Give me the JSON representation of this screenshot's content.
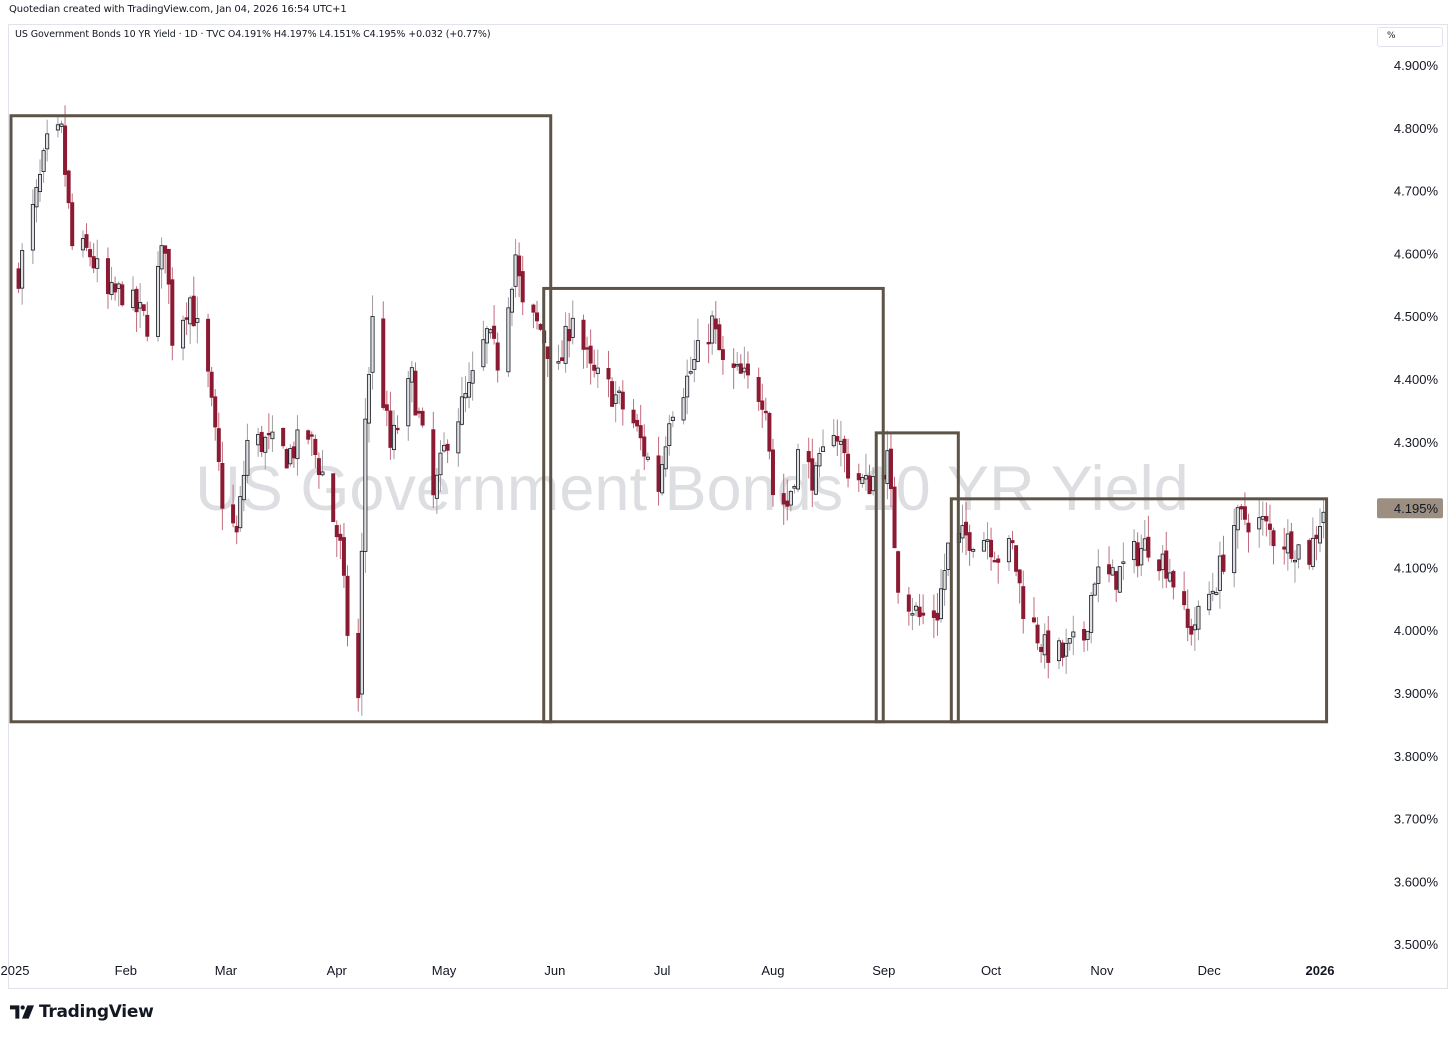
{
  "header": {
    "credit": "Quotedian created with TradingView.com, Jan 04, 2026 16:54 UTC+1"
  },
  "legend": {
    "text": "US Government Bonds 10 YR Yield · 1D · TVC  O4.191%  H4.197%  L4.151%  C4.195%  +0.032 (+0.77%)"
  },
  "unit_button": "%",
  "watermark": "US Government Bonds 10 YR Yield",
  "footer": {
    "brand": "TradingView",
    "logo_icon": "tradingview-logo-icon"
  },
  "colors": {
    "up_body": "#e0e0e0",
    "up_border": "#131722",
    "down": "#8b1a32",
    "wick": "#9e9e9e",
    "box": "#5d5346",
    "axis_text": "#131722",
    "last_price_bg": "#9c8f82",
    "watermark": "rgba(120,123,134,0.25)"
  },
  "chart_data": {
    "type": "candlestick",
    "title": "US Government Bonds 10 YR Yield",
    "unit": "%",
    "ylim": [
      3.45,
      4.95
    ],
    "y_ticks": [
      "4.900%",
      "4.800%",
      "4.700%",
      "4.600%",
      "4.500%",
      "4.400%",
      "4.300%",
      "4.100%",
      "4.000%",
      "3.900%",
      "3.800%",
      "3.700%",
      "3.600%",
      "3.500%"
    ],
    "y_tick_values": [
      4.9,
      4.8,
      4.7,
      4.6,
      4.5,
      4.4,
      4.3,
      4.1,
      4.0,
      3.9,
      3.8,
      3.7,
      3.6,
      3.5
    ],
    "x_ticks": [
      "2025",
      "Feb",
      "Mar",
      "Apr",
      "May",
      "Jun",
      "Jul",
      "Aug",
      "Sep",
      "Oct",
      "Nov",
      "Dec",
      "2026"
    ],
    "x_tick_dates": [
      "2025-01-01",
      "2025-02-01",
      "2025-03-01",
      "2025-04-01",
      "2025-05-01",
      "2025-06-01",
      "2025-07-01",
      "2025-08-01",
      "2025-09-01",
      "2025-10-01",
      "2025-11-01",
      "2025-12-01",
      "2026-01-01"
    ],
    "last_price": {
      "value": 4.195,
      "label": "4.195%"
    },
    "ohlc_last": {
      "open": 4.191,
      "high": 4.197,
      "low": 4.151,
      "close": 4.195,
      "change": 0.032,
      "change_pct": 0.77
    },
    "close_path": [
      [
        "2025-01-02",
        4.57
      ],
      [
        "2025-01-07",
        4.69
      ],
      [
        "2025-01-10",
        4.77
      ],
      [
        "2025-01-14",
        4.79
      ],
      [
        "2025-01-17",
        4.61
      ],
      [
        "2025-01-22",
        4.6
      ],
      [
        "2025-01-27",
        4.53
      ],
      [
        "2025-01-31",
        4.54
      ],
      [
        "2025-02-04",
        4.51
      ],
      [
        "2025-02-07",
        4.49
      ],
      [
        "2025-02-12",
        4.62
      ],
      [
        "2025-02-14",
        4.47
      ],
      [
        "2025-02-19",
        4.53
      ],
      [
        "2025-02-24",
        4.4
      ],
      [
        "2025-02-28",
        4.21
      ],
      [
        "2025-03-04",
        4.15
      ],
      [
        "2025-03-07",
        4.3
      ],
      [
        "2025-03-12",
        4.3
      ],
      [
        "2025-03-18",
        4.28
      ],
      [
        "2025-03-24",
        4.31
      ],
      [
        "2025-03-28",
        4.25
      ],
      [
        "2025-04-02",
        4.13
      ],
      [
        "2025-04-04",
        4.0
      ],
      [
        "2025-04-07",
        3.89
      ],
      [
        "2025-04-09",
        4.34
      ],
      [
        "2025-04-11",
        4.49
      ],
      [
        "2025-04-16",
        4.29
      ],
      [
        "2025-04-22",
        4.4
      ],
      [
        "2025-04-28",
        4.21
      ],
      [
        "2025-05-02",
        4.31
      ],
      [
        "2025-05-08",
        4.38
      ],
      [
        "2025-05-13",
        4.47
      ],
      [
        "2025-05-16",
        4.43
      ],
      [
        "2025-05-21",
        4.6
      ],
      [
        "2025-05-23",
        4.51
      ],
      [
        "2025-05-28",
        4.48
      ],
      [
        "2025-06-02",
        4.41
      ],
      [
        "2025-06-06",
        4.51
      ],
      [
        "2025-06-11",
        4.41
      ],
      [
        "2025-06-17",
        4.38
      ],
      [
        "2025-06-23",
        4.33
      ],
      [
        "2025-06-30",
        4.23
      ],
      [
        "2025-07-03",
        4.35
      ],
      [
        "2025-07-08",
        4.4
      ],
      [
        "2025-07-15",
        4.49
      ],
      [
        "2025-07-18",
        4.42
      ],
      [
        "2025-07-24",
        4.4
      ],
      [
        "2025-07-30",
        4.37
      ],
      [
        "2025-08-01",
        4.22
      ],
      [
        "2025-08-05",
        4.2
      ],
      [
        "2025-08-08",
        4.28
      ],
      [
        "2025-08-13",
        4.24
      ],
      [
        "2025-08-18",
        4.33
      ],
      [
        "2025-08-22",
        4.26
      ],
      [
        "2025-08-27",
        4.23
      ],
      [
        "2025-09-02",
        4.27
      ],
      [
        "2025-09-05",
        4.08
      ],
      [
        "2025-09-11",
        4.02
      ],
      [
        "2025-09-16",
        4.03
      ],
      [
        "2025-09-19",
        4.13
      ],
      [
        "2025-09-24",
        4.15
      ],
      [
        "2025-09-30",
        4.15
      ],
      [
        "2025-10-03",
        4.12
      ],
      [
        "2025-10-07",
        4.13
      ],
      [
        "2025-10-10",
        4.04
      ],
      [
        "2025-10-16",
        3.97
      ],
      [
        "2025-10-21",
        3.96
      ],
      [
        "2025-10-27",
        3.99
      ],
      [
        "2025-10-30",
        4.09
      ],
      [
        "2025-11-04",
        4.08
      ],
      [
        "2025-11-10",
        4.12
      ],
      [
        "2025-11-14",
        4.14
      ],
      [
        "2025-11-20",
        4.1
      ],
      [
        "2025-11-25",
        4.0
      ],
      [
        "2025-11-28",
        4.02
      ],
      [
        "2025-12-03",
        4.08
      ],
      [
        "2025-12-08",
        4.17
      ],
      [
        "2025-12-11",
        4.18
      ],
      [
        "2025-12-16",
        4.17
      ],
      [
        "2025-12-19",
        4.15
      ],
      [
        "2025-12-24",
        4.14
      ],
      [
        "2025-12-29",
        4.12
      ],
      [
        "2025-12-31",
        4.16
      ],
      [
        "2026-01-02",
        4.195
      ]
    ],
    "rectangles": [
      {
        "start": "2025-01-01",
        "end": "2025-05-30",
        "top": 4.82,
        "bottom": 3.855
      },
      {
        "start": "2025-05-30",
        "end": "2025-08-31",
        "top": 4.545,
        "bottom": 3.855
      },
      {
        "start": "2025-08-31",
        "end": "2025-09-21",
        "top": 4.315,
        "bottom": 3.855
      },
      {
        "start": "2025-09-21",
        "end": "2026-01-02",
        "top": 4.21,
        "bottom": 3.855
      }
    ]
  }
}
